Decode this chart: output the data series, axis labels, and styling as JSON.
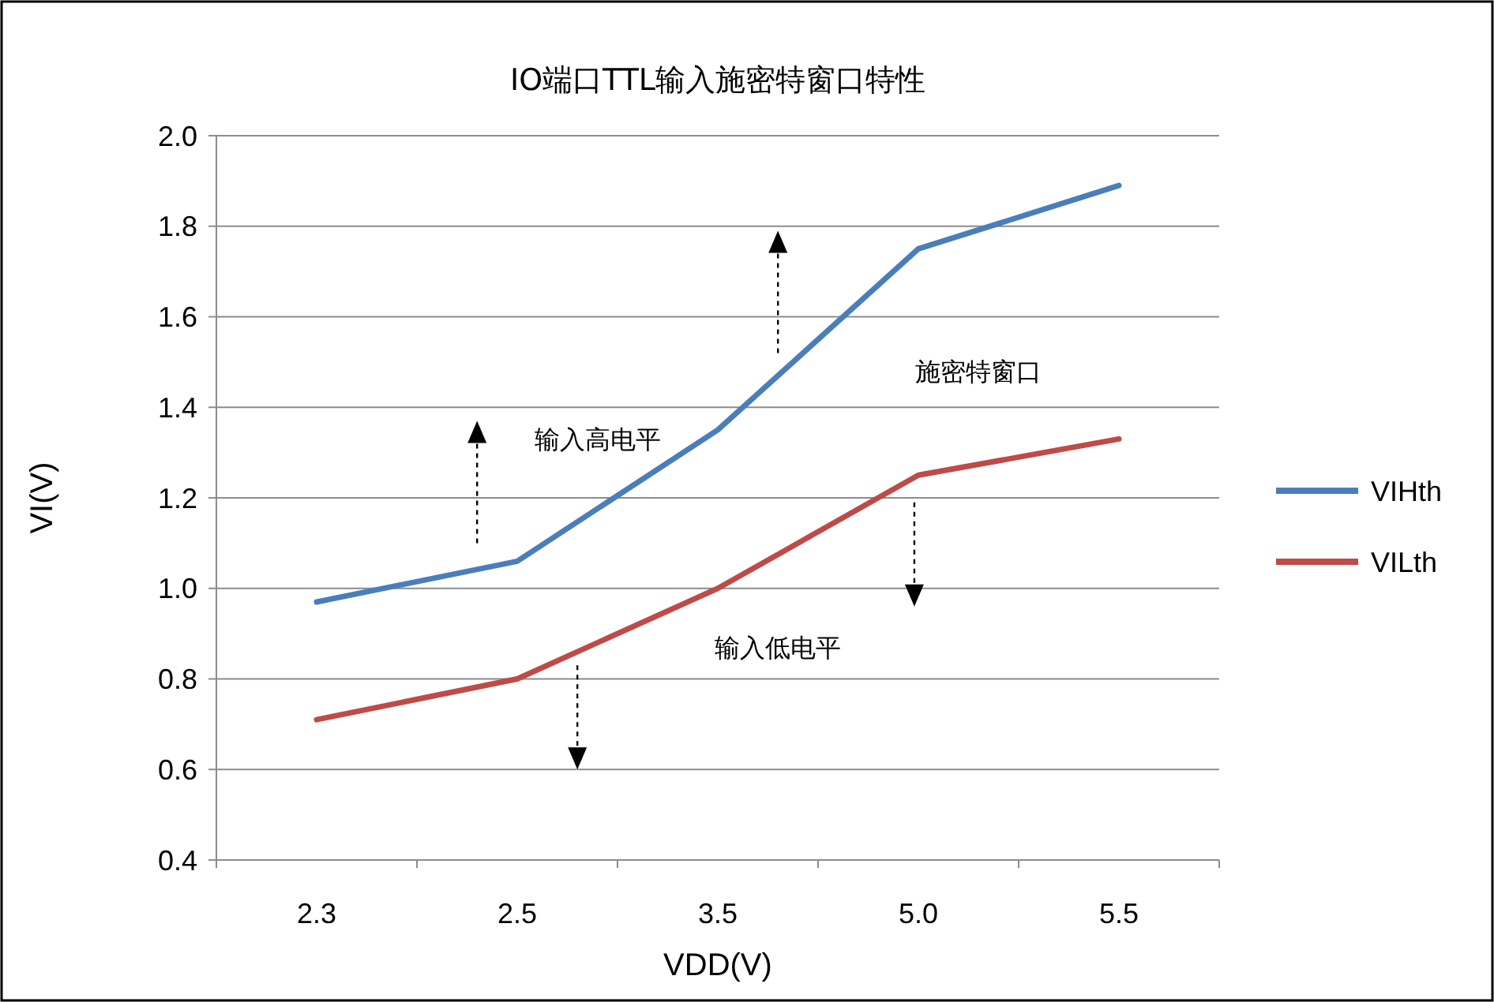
{
  "chart_data": {
    "type": "line",
    "title": "IO端口TTL输入施密特窗口特性",
    "xlabel": "VDD(V)",
    "ylabel": "VI(V)",
    "categories": [
      "2.3",
      "2.5",
      "3.5",
      "5.0",
      "5.5"
    ],
    "series": [
      {
        "name": "VIHth",
        "color": "#4a7ebb",
        "values": [
          0.97,
          1.06,
          1.35,
          1.75,
          1.89
        ]
      },
      {
        "name": "VILth",
        "color": "#be4b48",
        "values": [
          0.71,
          0.8,
          1.0,
          1.25,
          1.33
        ]
      }
    ],
    "ylim": [
      0.4,
      2.0
    ],
    "yticks": [
      {
        "value": 0.4,
        "label": "0.4"
      },
      {
        "value": 0.6,
        "label": "0.6"
      },
      {
        "value": 0.8,
        "label": "0.8"
      },
      {
        "value": 1.0,
        "label": "1.0"
      },
      {
        "value": 1.2,
        "label": "1.2"
      },
      {
        "value": 1.4,
        "label": "1.4"
      },
      {
        "value": 1.6,
        "label": "1.6"
      },
      {
        "value": 1.8,
        "label": "1.8"
      },
      {
        "value": 2.0,
        "label": "2.0"
      }
    ],
    "grid": "y",
    "legend": "right",
    "marker": "none",
    "line_style": "solid",
    "annotations": [
      "输入高电平",
      "施密特窗口",
      "输入低电平"
    ]
  }
}
